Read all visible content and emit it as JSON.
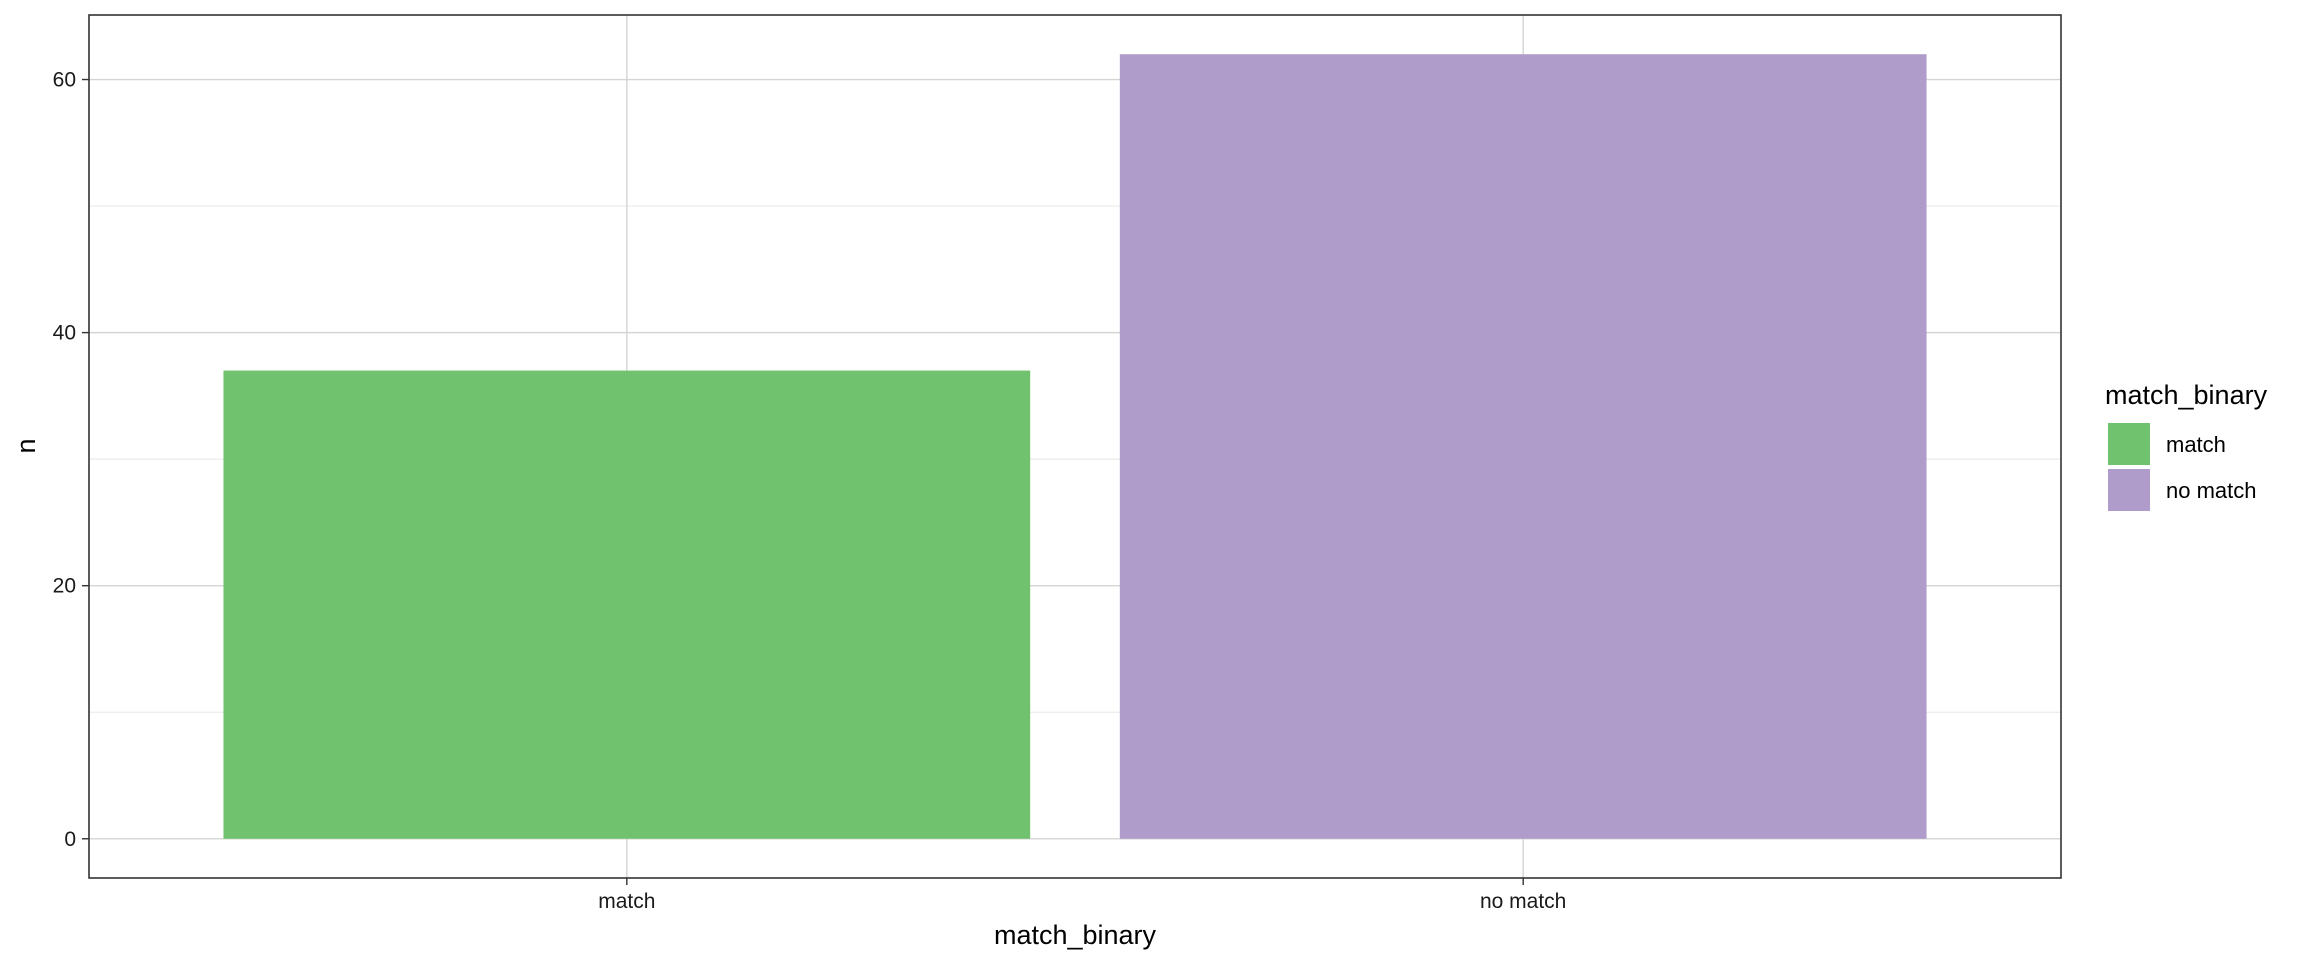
{
  "chart_data": {
    "type": "bar",
    "title": "",
    "xlabel": "match_binary",
    "ylabel": "n",
    "categories": [
      "match",
      "no match"
    ],
    "values": [
      37,
      62
    ],
    "colors": [
      "#71c26e",
      "#af9cca"
    ],
    "ylim": [
      -3.1,
      65.1
    ],
    "yticks": [
      0,
      20,
      40,
      60
    ],
    "grid": true,
    "legend": {
      "title": "match_binary",
      "placement": "right",
      "entries": [
        {
          "label": "match",
          "color": "#71c26e"
        },
        {
          "label": "no match",
          "color": "#af9cca"
        }
      ]
    }
  }
}
